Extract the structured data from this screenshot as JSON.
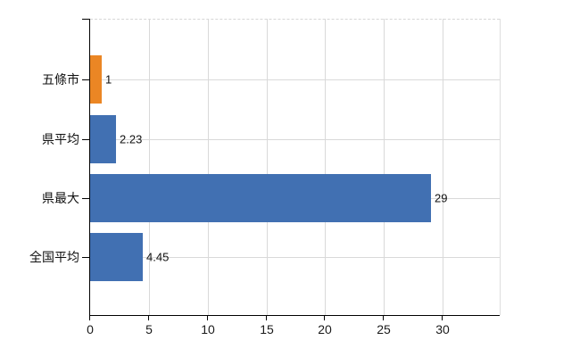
{
  "chart_data": {
    "type": "bar",
    "orientation": "horizontal",
    "title": "",
    "xlabel": "",
    "ylabel": "",
    "categories": [
      "五條市",
      "県平均",
      "県最大",
      "全国平均"
    ],
    "values": [
      1,
      2.23,
      29,
      4.45
    ],
    "value_labels": [
      "1",
      "2.23",
      "29",
      "4.45"
    ],
    "bar_colors": [
      "#eb8624",
      "#4170b2",
      "#4170b2",
      "#4170b2"
    ],
    "xlim": [
      0,
      34.84
    ],
    "xticks": [
      0,
      5,
      10,
      15,
      20,
      25,
      30
    ],
    "xtick_labels": [
      "0",
      "5",
      "10",
      "15",
      "20",
      "25",
      "30"
    ],
    "grid": true,
    "legend": false
  },
  "style": {
    "background": "#ffffff",
    "grid_color": "#d9d9d9",
    "axis_color": "#000000",
    "text_color": "#111111",
    "orange": "#eb8624",
    "blue": "#4170b2"
  }
}
